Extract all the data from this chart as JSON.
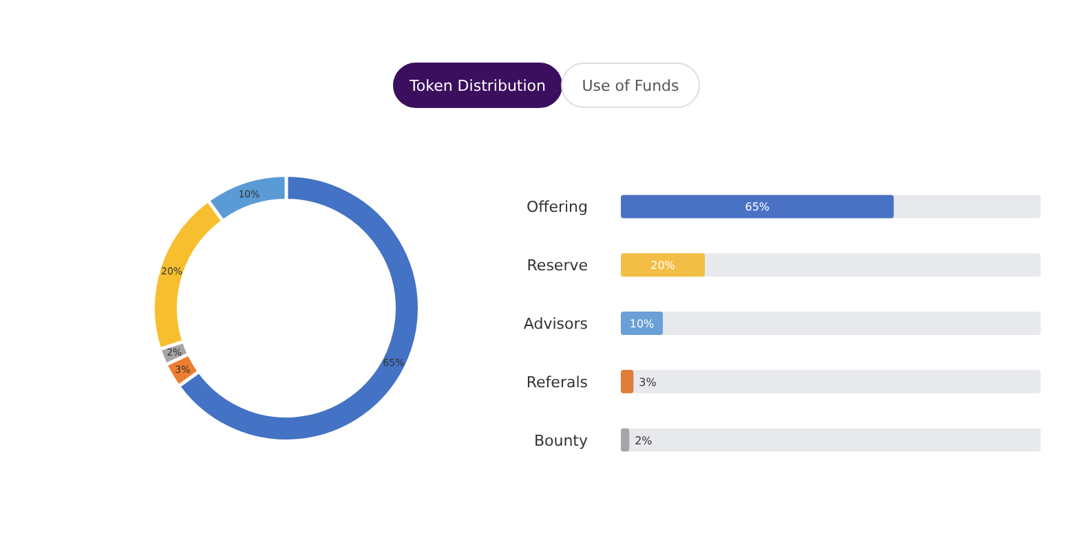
{
  "chart_data": [
    {
      "type": "other",
      "annotations": [
        "Token Distribution",
        "Use of Funds"
      ]
    },
    {
      "type": "donut",
      "categories": [
        null,
        null,
        null,
        null,
        null
      ],
      "values": [
        65,
        3,
        2,
        20,
        10
      ],
      "colors": [
        "#4472c4",
        "#ed7d31",
        "#a5a5a5",
        "#f7bf2f",
        "#5b9bd5"
      ],
      "value_labels": [
        "65%",
        "3%",
        "2%",
        "20%",
        "10%"
      ]
    },
    {
      "type": "bar",
      "orientation": "horizontal",
      "categories": [
        "Offering",
        "Reserve",
        "Advisors",
        "Referals",
        "Bounty"
      ],
      "values": [
        65,
        20,
        10,
        3,
        2
      ],
      "colors": [
        "#4a72c4",
        "#f2be45",
        "#6a9fd8",
        "#e07b39",
        "#a6a6a6"
      ],
      "value_labels": [
        "65%",
        "20%",
        "10%",
        "3%",
        "2%"
      ],
      "xlim": [
        0,
        100
      ],
      "tick_labels": "y"
    }
  ]
}
